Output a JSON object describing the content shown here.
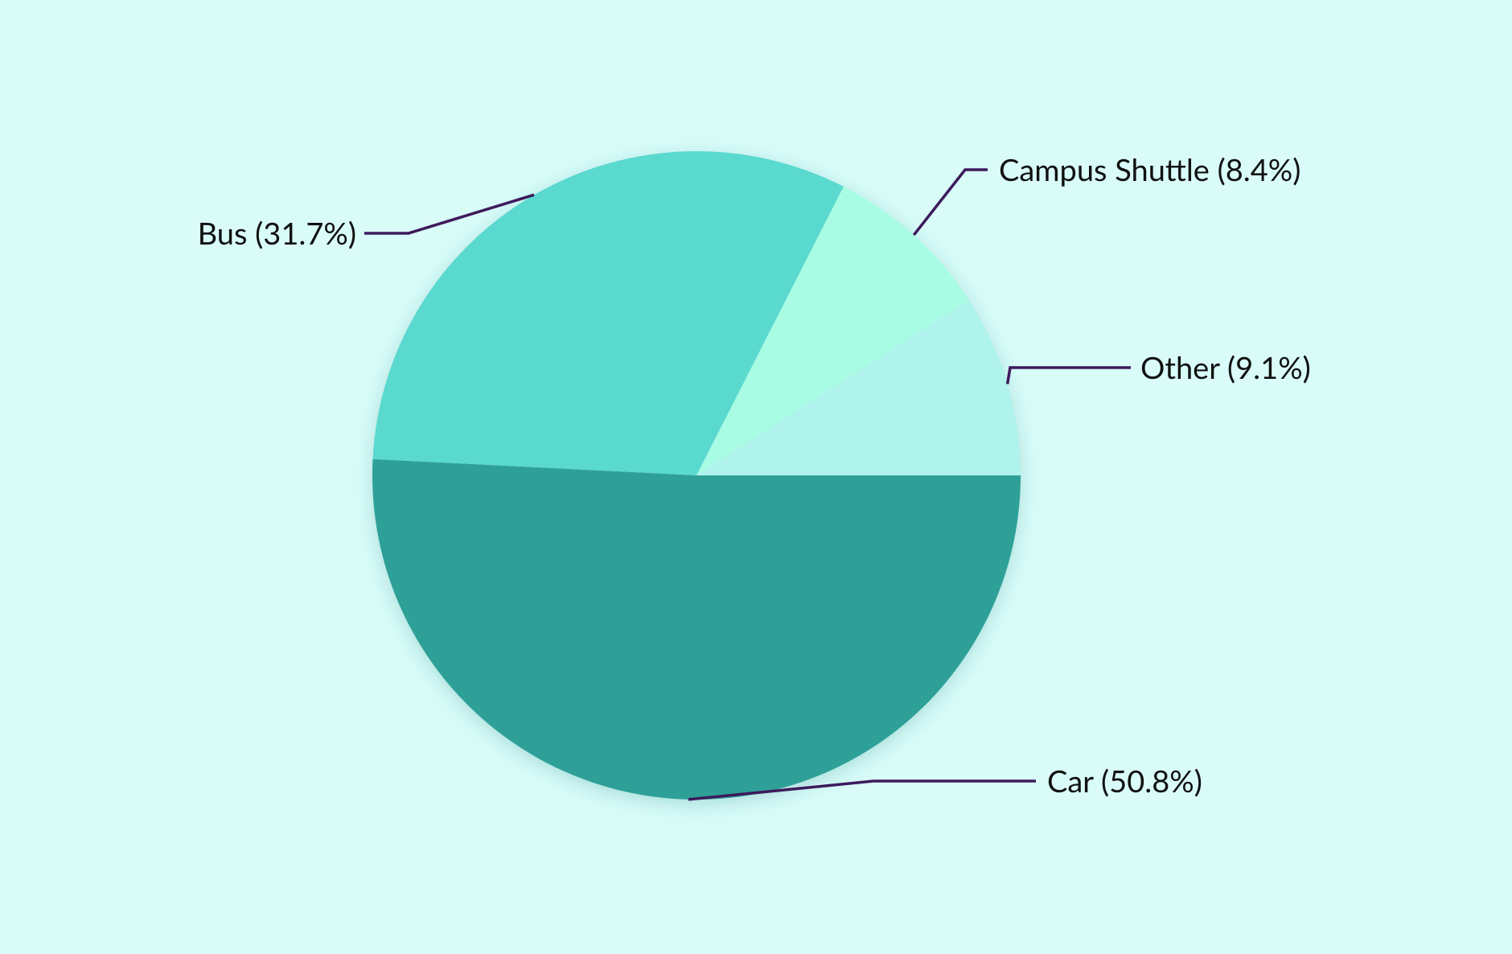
{
  "colors": {
    "background": "#d9fcf9",
    "leader_line": "#3d1a5c"
  },
  "chart_data": {
    "type": "pie",
    "title": "",
    "legend": "none",
    "slices": [
      {
        "label": "Car",
        "value": 50.8,
        "display": "Car (50.8%)",
        "color": "#2ea098"
      },
      {
        "label": "Bus",
        "value": 31.7,
        "display": "Bus (31.7%)",
        "color": "#5ad9cf"
      },
      {
        "label": "Campus Shuttle",
        "value": 8.4,
        "display": "Campus Shuttle (8.4%)",
        "color": "#a8fce3"
      },
      {
        "label": "Other",
        "value": 9.1,
        "display": "Other (9.1%)",
        "color": "#b0f2ec"
      }
    ]
  }
}
